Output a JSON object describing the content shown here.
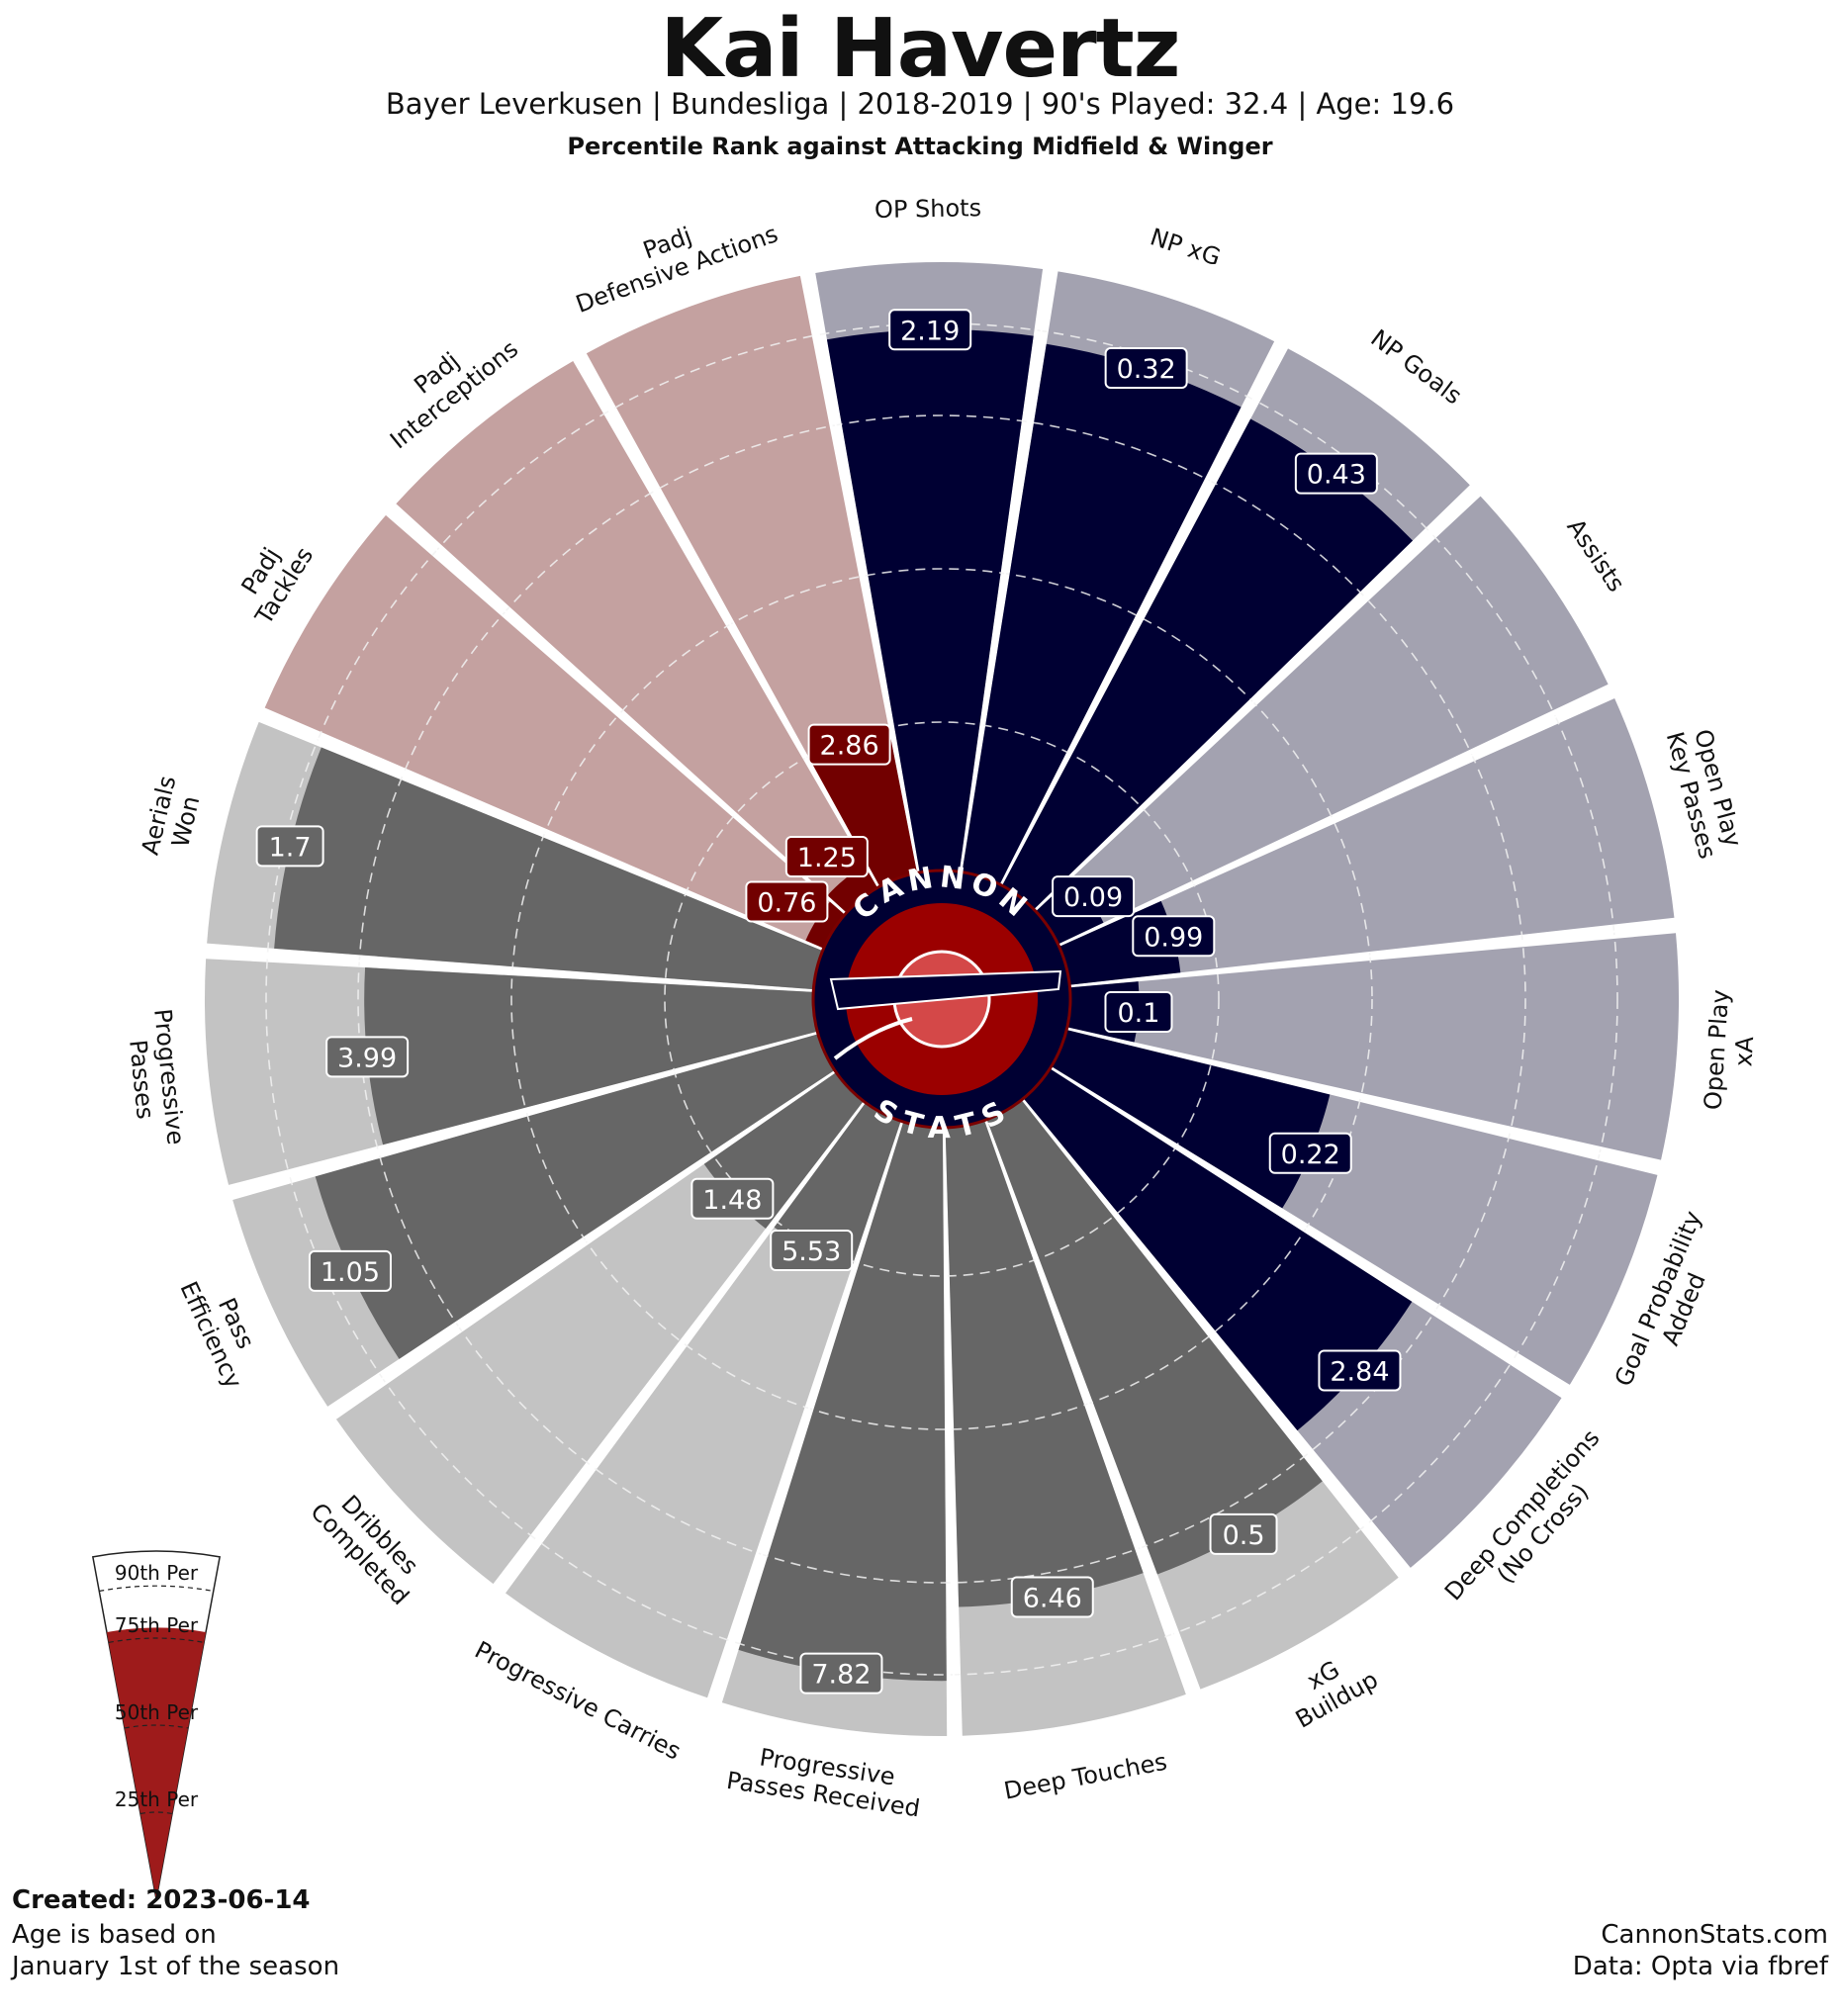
{
  "header": {
    "title": "Kai Havertz",
    "subtitle": "Bayer Leverkusen  | Bundesliga | 2018-2019 | 90's Played: 32.4 | Age: 19.6",
    "subtitle2": "Percentile Rank against Attacking Midfield & Winger"
  },
  "colors": {
    "attacking": "#000033",
    "attacking_bg": "#a3a2b0",
    "defending": "#720000",
    "defending_bg": "#c4a1a0",
    "possession": "#666666",
    "possession_bg": "#c3c3c3",
    "logo_red": "#9b0000",
    "logo_navy": "#000033",
    "legend_fill": "#9e1b1b"
  },
  "logo": {
    "top_text": "CANNON",
    "bottom_text": "STATS",
    "icon": "cannon-icon"
  },
  "legend": {
    "labels": [
      "90th Per",
      "75th Per",
      "50th Per",
      "25th Per"
    ],
    "example_percentile": 78
  },
  "chart_data": {
    "type": "pizza",
    "metric": "percentile",
    "range": [
      0,
      100
    ],
    "grid": "dashed rings",
    "slices": [
      {
        "label": "OP Shots",
        "value": "2.19",
        "percentile": 89,
        "group": "attacking"
      },
      {
        "label": "NP xG",
        "value": "0.32",
        "percentile": 88,
        "group": "attacking"
      },
      {
        "label": "NP Goals",
        "value": "0.43",
        "percentile": 87,
        "group": "attacking"
      },
      {
        "label": "Assists",
        "value": "0.09",
        "percentile": 9,
        "group": "attacking"
      },
      {
        "label": "Open Play\nKey Passes",
        "value": "0.99",
        "percentile": 19,
        "group": "attacking"
      },
      {
        "label": "Open Play\nxA",
        "value": "0.1",
        "percentile": 12,
        "group": "attacking"
      },
      {
        "label": "Goal Probability\nAdded",
        "value": "0.22",
        "percentile": 45,
        "group": "attacking"
      },
      {
        "label": "Deep Completions\n(No Cross)",
        "value": "2.84",
        "percentile": 71,
        "group": "attacking"
      },
      {
        "label": "xG\nBuildup",
        "value": "0.5",
        "percentile": 80,
        "group": "possession"
      },
      {
        "label": "Deep Touches",
        "value": "6.46",
        "percentile": 79,
        "group": "possession"
      },
      {
        "label": "Progressive\nPasses Received",
        "value": "7.82",
        "percentile": 91,
        "group": "possession"
      },
      {
        "label": "Progressive Carries",
        "value": "5.53",
        "percentile": 26,
        "group": "possession"
      },
      {
        "label": "Dribbles\nCompleted",
        "value": "1.48",
        "percentile": 27,
        "group": "possession"
      },
      {
        "label": "Pass\nEfficiency",
        "value": "1.05",
        "percentile": 86,
        "group": "possession"
      },
      {
        "label": "Progressive\nPasses",
        "value": "3.99",
        "percentile": 74,
        "group": "possession"
      },
      {
        "label": "Aerials\nWon",
        "value": "1.7",
        "percentile": 89,
        "group": "possession"
      },
      {
        "label": "Padj\nTackles",
        "value": "0.76",
        "percentile": 4,
        "group": "defending"
      },
      {
        "label": "Padj\nInterceptions",
        "value": "1.25",
        "percentile": 5,
        "group": "defending"
      },
      {
        "label": "Padj\nDefensive Actions",
        "value": "2.86",
        "percentile": 24,
        "group": "defending"
      }
    ]
  },
  "footer": {
    "created": "Created: 2023-06-14",
    "age_note": "Age is based on\nJanuary 1st of the season",
    "source": "CannonStats.com\nData: Opta via fbref"
  }
}
